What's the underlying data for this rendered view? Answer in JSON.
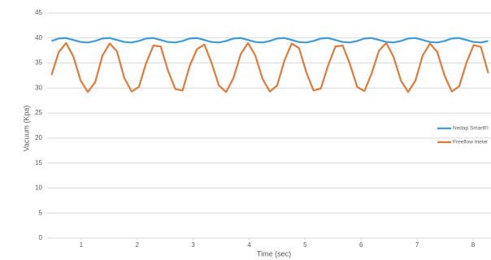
{
  "chart_data": {
    "type": "line",
    "x_label": "Time (sec)",
    "y_label": "Vacuum (Kpa)",
    "x": [
      0.47,
      0.6,
      0.73,
      0.86,
      0.99,
      1.12,
      1.25,
      1.38,
      1.51,
      1.64,
      1.77,
      1.9,
      2.03,
      2.16,
      2.29,
      2.42,
      2.55,
      2.68,
      2.81,
      2.94,
      3.07,
      3.2,
      3.33,
      3.46,
      3.59,
      3.72,
      3.85,
      3.98,
      4.11,
      4.24,
      4.37,
      4.5,
      4.63,
      4.76,
      4.89,
      5.02,
      5.15,
      5.28,
      5.41,
      5.54,
      5.67,
      5.8,
      5.93,
      6.06,
      6.19,
      6.32,
      6.45,
      6.58,
      6.71,
      6.84,
      6.97,
      7.1,
      7.23,
      7.36,
      7.49,
      7.62,
      7.75,
      7.88,
      8.01,
      8.14,
      8.27
    ],
    "series": [
      {
        "name": "Nedap SmartFl",
        "color": "#3f9bd8",
        "values": [
          39.4,
          39.9,
          40.0,
          39.6,
          39.2,
          39.1,
          39.4,
          39.9,
          40.0,
          39.6,
          39.2,
          39.1,
          39.4,
          39.9,
          40.0,
          39.6,
          39.2,
          39.1,
          39.4,
          39.9,
          40.0,
          39.6,
          39.2,
          39.1,
          39.4,
          39.9,
          40.0,
          39.6,
          39.2,
          39.1,
          39.4,
          39.9,
          40.0,
          39.6,
          39.2,
          39.1,
          39.4,
          39.9,
          40.0,
          39.6,
          39.2,
          39.1,
          39.4,
          39.9,
          40.0,
          39.6,
          39.2,
          39.1,
          39.4,
          39.9,
          40.0,
          39.6,
          39.2,
          39.1,
          39.4,
          39.9,
          40.0,
          39.6,
          39.2,
          39.1,
          39.4
        ]
      },
      {
        "name": "Freeflow meter",
        "color": "#e07b39",
        "values": [
          32.6,
          37.2,
          39.0,
          36.3,
          31.5,
          29.2,
          31.2,
          36.5,
          38.9,
          37.3,
          32.0,
          29.3,
          30.2,
          35.0,
          38.5,
          38.3,
          33.5,
          29.8,
          29.5,
          34.5,
          37.8,
          38.7,
          35.0,
          30.5,
          29.2,
          32.0,
          36.8,
          39.0,
          36.5,
          31.8,
          29.3,
          30.5,
          35.5,
          38.9,
          38.0,
          33.2,
          29.5,
          29.9,
          34.5,
          38.3,
          38.5,
          34.8,
          30.2,
          29.4,
          33.0,
          37.5,
          39.0,
          36.2,
          31.5,
          29.2,
          31.5,
          36.5,
          38.9,
          37.2,
          32.5,
          29.3,
          30.3,
          35.0,
          38.6,
          38.2,
          33.0
        ]
      }
    ],
    "xlim": [
      0.45,
      8.32
    ],
    "xticks": [
      1,
      2,
      3,
      4,
      5,
      6,
      7,
      8
    ],
    "ylim": [
      0,
      45
    ],
    "yticks": [
      0,
      5,
      10,
      15,
      20,
      25,
      30,
      35,
      40,
      45
    ],
    "grid": true,
    "legend": "right"
  }
}
